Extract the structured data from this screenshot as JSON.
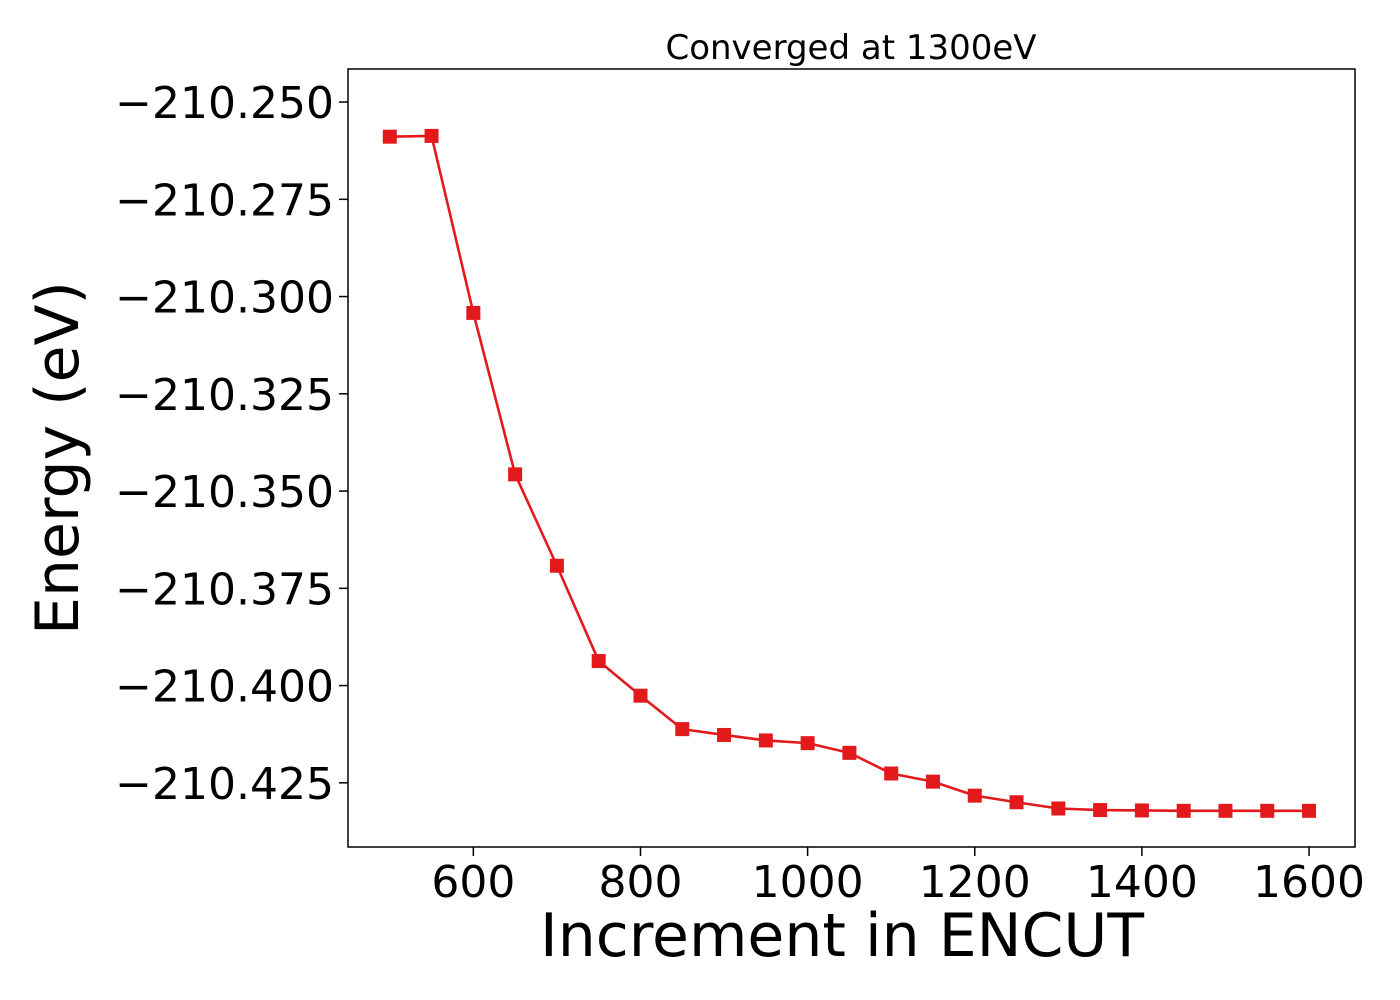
{
  "chart_data": {
    "type": "line",
    "title": "Converged at 1300eV",
    "xlabel": "Increment in ENCUT",
    "ylabel": "Energy (eV)",
    "xlim": [
      450,
      1655
    ],
    "ylim": [
      -210.4415,
      -210.2415
    ],
    "x_ticks": [
      600,
      800,
      1000,
      1200,
      1400,
      1600
    ],
    "x_tick_labels": [
      "600",
      "800",
      "1000",
      "1200",
      "1400",
      "1600"
    ],
    "y_ticks": [
      -210.25,
      -210.275,
      -210.3,
      -210.325,
      -210.35,
      -210.375,
      -210.4,
      -210.425
    ],
    "y_tick_labels": [
      "−210.250",
      "−210.275",
      "−210.300",
      "−210.325",
      "−210.350",
      "−210.375",
      "−210.400",
      "−210.425"
    ],
    "grid": false,
    "series": [
      {
        "marker": "square",
        "color": "#e31a1c",
        "x": [
          500,
          550,
          600,
          650,
          700,
          750,
          800,
          850,
          900,
          950,
          1000,
          1050,
          1100,
          1150,
          1200,
          1250,
          1300,
          1350,
          1400,
          1450,
          1500,
          1550,
          1600
        ],
        "y": [
          -210.2589,
          -210.2587,
          -210.3042,
          -210.3457,
          -210.3692,
          -210.3937,
          -210.4026,
          -210.4112,
          -210.4127,
          -210.4141,
          -210.4148,
          -210.4173,
          -210.4226,
          -210.4247,
          -210.4283,
          -210.43,
          -210.4316,
          -210.432,
          -210.4321,
          -210.4322,
          -210.4322,
          -210.4322,
          -210.4322
        ]
      }
    ]
  }
}
